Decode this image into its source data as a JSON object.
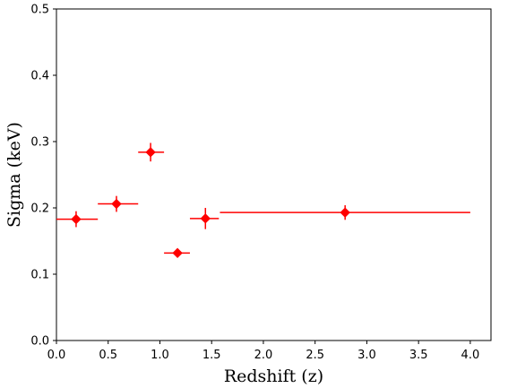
{
  "chart_data": {
    "type": "scatter",
    "xlabel": "Redshift (z)",
    "ylabel": "Sigma (keV)",
    "xlim": [
      0.0,
      4.2
    ],
    "ylim": [
      0.0,
      0.5
    ],
    "xticks": [
      "0.0",
      "0.5",
      "1.0",
      "1.5",
      "2.0",
      "2.5",
      "3.0",
      "3.5",
      "4.0"
    ],
    "yticks": [
      "0.0",
      "0.1",
      "0.2",
      "0.3",
      "0.4",
      "0.5"
    ],
    "grid": false,
    "marker": "diamond",
    "color": "#ff0000",
    "series": [
      {
        "points": [
          {
            "x": 0.19,
            "y": 0.183,
            "xerr": [
              0.19,
              0.21
            ],
            "yerr": [
              0.012,
              0.012
            ]
          },
          {
            "x": 0.58,
            "y": 0.206,
            "xerr": [
              0.18,
              0.21
            ],
            "yerr": [
              0.012,
              0.012
            ]
          },
          {
            "x": 0.91,
            "y": 0.284,
            "xerr": [
              0.12,
              0.13
            ],
            "yerr": [
              0.014,
              0.014
            ]
          },
          {
            "x": 1.17,
            "y": 0.132,
            "xerr": [
              0.13,
              0.12
            ],
            "yerr": [
              0.005,
              0.005
            ]
          },
          {
            "x": 1.44,
            "y": 0.184,
            "xerr": [
              0.15,
              0.13
            ],
            "yerr": [
              0.016,
              0.016
            ]
          },
          {
            "x": 2.79,
            "y": 0.193,
            "xerr": [
              1.21,
              1.21
            ],
            "yerr": [
              0.011,
              0.011
            ]
          }
        ]
      }
    ]
  }
}
